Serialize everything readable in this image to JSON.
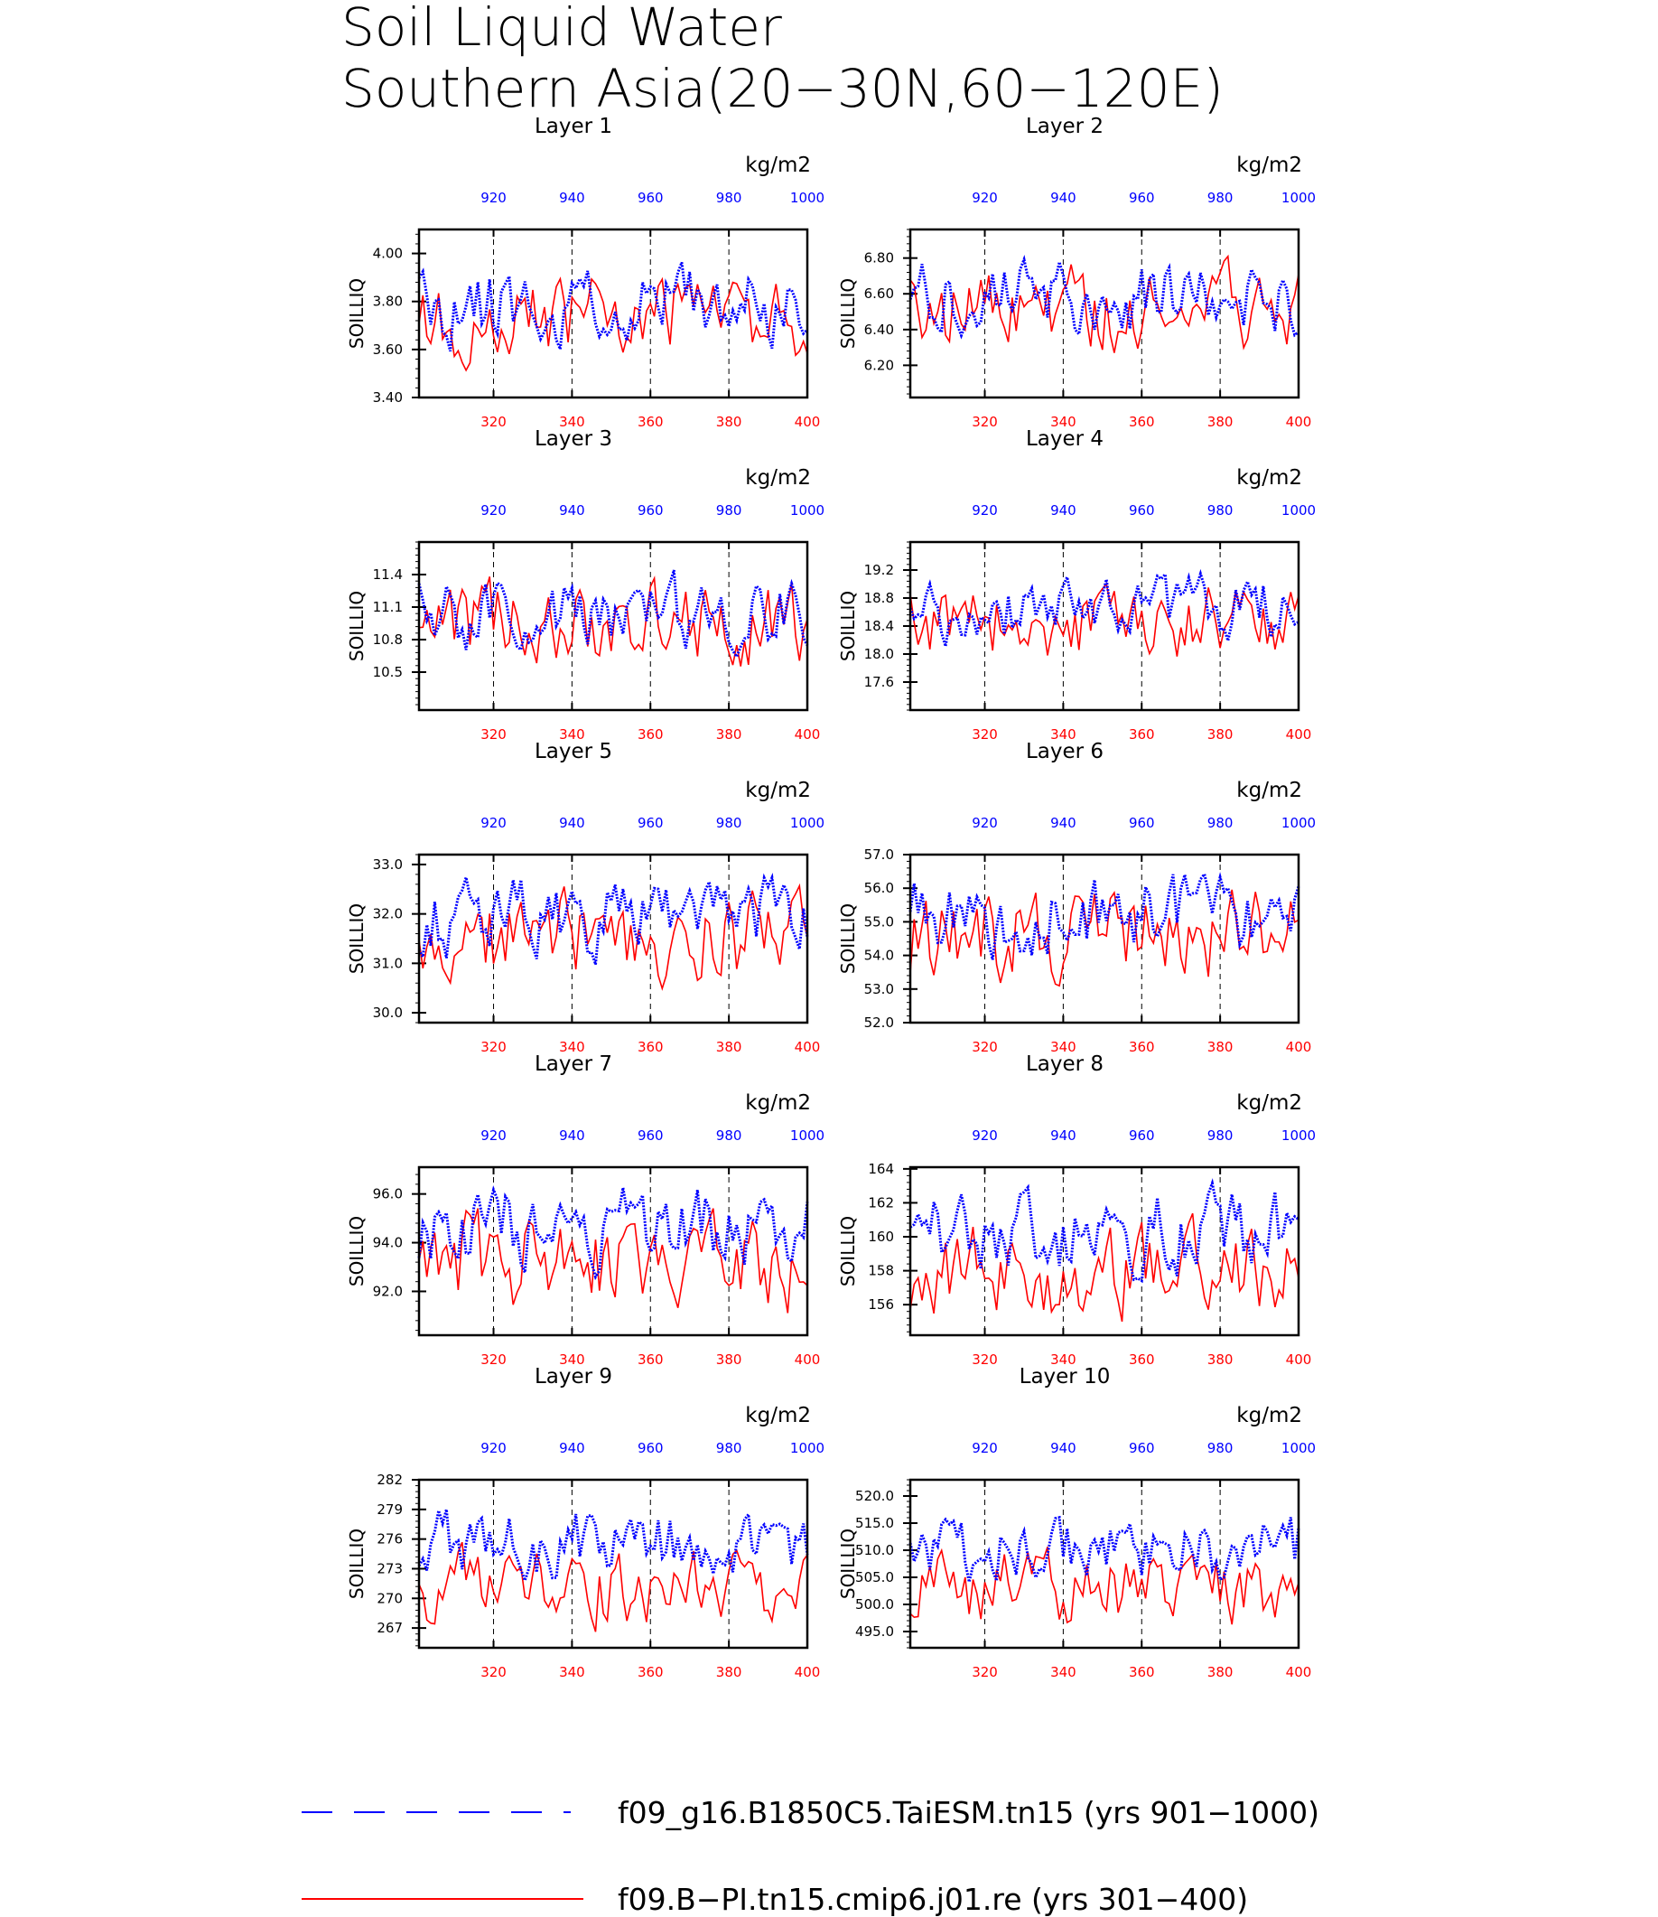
{
  "title_line1": "Soil Liquid Water",
  "title_line2": "Southern Asia(20−30N,60−120E)",
  "colors": {
    "blue_series": "#0000ff",
    "red_series": "#ff0000",
    "axis": "#000000"
  },
  "legend": [
    {
      "label": "f09_g16.B1850C5.TaiESM.tn15 (yrs 901−1000)",
      "color": "#0000ff",
      "style": "dashed"
    },
    {
      "label": "f09.B−PI.tn15.cmip6.j01.re (yrs 301−400)",
      "color": "#ff0000",
      "style": "solid"
    }
  ],
  "chart_data": [
    {
      "type": "line",
      "title": "Layer 1",
      "ylabel": "SOILLIQ",
      "units": "kg/m2",
      "yticks": [
        "3.40",
        "3.60",
        "3.80",
        "4.00"
      ],
      "ylim": [
        3.4,
        4.1
      ],
      "mean_blue": 3.78,
      "mean_red": 3.74,
      "amp": 0.12,
      "x_bottom": {
        "ticks": [
          "320",
          "340",
          "360",
          "380",
          "400"
        ],
        "range": [
          301,
          400
        ],
        "color": "#ff0000"
      },
      "x_top": {
        "ticks": [
          "920",
          "940",
          "960",
          "980",
          "1000"
        ],
        "range": [
          901,
          1000
        ],
        "color": "#0000ff"
      },
      "series": [
        {
          "name": "f09_g16.B1850C5.TaiESM.tn15",
          "color": "#0000ff",
          "style": "dotted",
          "seed": 11
        },
        {
          "name": "f09.B−PI.tn15.cmip6.j01.re",
          "color": "#ff0000",
          "style": "solid",
          "seed": 12
        }
      ]
    },
    {
      "type": "line",
      "title": "Layer 2",
      "ylabel": "SOILLIQ",
      "units": "kg/m2",
      "yticks": [
        "6.20",
        "6.40",
        "6.60",
        "6.80"
      ],
      "ylim": [
        6.02,
        6.96
      ],
      "mean_blue": 6.58,
      "mean_red": 6.52,
      "amp": 0.15,
      "x_bottom": {
        "ticks": [
          "320",
          "340",
          "360",
          "380",
          "400"
        ],
        "range": [
          301,
          400
        ],
        "color": "#ff0000"
      },
      "x_top": {
        "ticks": [
          "920",
          "940",
          "960",
          "980",
          "1000"
        ],
        "range": [
          901,
          1000
        ],
        "color": "#0000ff"
      },
      "series": [
        {
          "name": "f09_g16.B1850C5.TaiESM.tn15",
          "color": "#0000ff",
          "style": "dotted",
          "seed": 21
        },
        {
          "name": "f09.B−PI.tn15.cmip6.j01.re",
          "color": "#ff0000",
          "style": "solid",
          "seed": 22
        }
      ]
    },
    {
      "type": "line",
      "title": "Layer 3",
      "ylabel": "SOILLIQ",
      "units": "kg/m2",
      "yticks": [
        "10.5",
        "10.8",
        "11.1",
        "11.4"
      ],
      "ylim": [
        10.15,
        11.7
      ],
      "mean_blue": 11.05,
      "mean_red": 10.95,
      "amp": 0.25,
      "x_bottom": {
        "ticks": [
          "320",
          "340",
          "360",
          "380",
          "400"
        ],
        "range": [
          301,
          400
        ],
        "color": "#ff0000"
      },
      "x_top": {
        "ticks": [
          "920",
          "940",
          "960",
          "980",
          "1000"
        ],
        "range": [
          901,
          1000
        ],
        "color": "#0000ff"
      },
      "series": [
        {
          "name": "f09_g16.B1850C5.TaiESM.tn15",
          "color": "#0000ff",
          "style": "dotted",
          "seed": 31
        },
        {
          "name": "f09.B−PI.tn15.cmip6.j01.re",
          "color": "#ff0000",
          "style": "solid",
          "seed": 32
        }
      ]
    },
    {
      "type": "line",
      "title": "Layer 4",
      "ylabel": "SOILLIQ",
      "units": "kg/m2",
      "yticks": [
        "17.6",
        "18.0",
        "18.4",
        "18.8",
        "19.2"
      ],
      "ylim": [
        17.2,
        19.6
      ],
      "mean_blue": 18.65,
      "mean_red": 18.45,
      "amp": 0.35,
      "x_bottom": {
        "ticks": [
          "320",
          "340",
          "360",
          "380",
          "400"
        ],
        "range": [
          301,
          400
        ],
        "color": "#ff0000"
      },
      "x_top": {
        "ticks": [
          "920",
          "940",
          "960",
          "980",
          "1000"
        ],
        "range": [
          901,
          1000
        ],
        "color": "#0000ff"
      },
      "series": [
        {
          "name": "f09_g16.B1850C5.TaiESM.tn15",
          "color": "#0000ff",
          "style": "dotted",
          "seed": 41
        },
        {
          "name": "f09.B−PI.tn15.cmip6.j01.re",
          "color": "#ff0000",
          "style": "solid",
          "seed": 42
        }
      ]
    },
    {
      "type": "line",
      "title": "Layer 5",
      "ylabel": "SOILLIQ",
      "units": "kg/m2",
      "yticks": [
        "30.0",
        "31.0",
        "32.0",
        "33.0"
      ],
      "ylim": [
        29.8,
        33.2
      ],
      "mean_blue": 31.9,
      "mean_red": 31.5,
      "amp": 0.6,
      "x_bottom": {
        "ticks": [
          "320",
          "340",
          "360",
          "380",
          "400"
        ],
        "range": [
          301,
          400
        ],
        "color": "#ff0000"
      },
      "x_top": {
        "ticks": [
          "920",
          "940",
          "960",
          "980",
          "1000"
        ],
        "range": [
          901,
          1000
        ],
        "color": "#0000ff"
      },
      "series": [
        {
          "name": "f09_g16.B1850C5.TaiESM.tn15",
          "color": "#0000ff",
          "style": "dotted",
          "seed": 51
        },
        {
          "name": "f09.B−PI.tn15.cmip6.j01.re",
          "color": "#ff0000",
          "style": "solid",
          "seed": 52
        }
      ]
    },
    {
      "type": "line",
      "title": "Layer 6",
      "ylabel": "SOILLIQ",
      "units": "kg/m2",
      "yticks": [
        "52.0",
        "53.0",
        "54.0",
        "55.0",
        "56.0",
        "57.0"
      ],
      "ylim": [
        52.0,
        57.0
      ],
      "mean_blue": 55.2,
      "mean_red": 54.6,
      "amp": 0.9,
      "x_bottom": {
        "ticks": [
          "320",
          "340",
          "360",
          "380",
          "400"
        ],
        "range": [
          301,
          400
        ],
        "color": "#ff0000"
      },
      "x_top": {
        "ticks": [
          "920",
          "940",
          "960",
          "980",
          "1000"
        ],
        "range": [
          901,
          1000
        ],
        "color": "#0000ff"
      },
      "series": [
        {
          "name": "f09_g16.B1850C5.TaiESM.tn15",
          "color": "#0000ff",
          "style": "dotted",
          "seed": 61
        },
        {
          "name": "f09.B−PI.tn15.cmip6.j01.re",
          "color": "#ff0000",
          "style": "solid",
          "seed": 62
        }
      ]
    },
    {
      "type": "line",
      "title": "Layer 7",
      "ylabel": "SOILLIQ",
      "units": "kg/m2",
      "yticks": [
        "92.0",
        "94.0",
        "96.0"
      ],
      "ylim": [
        90.2,
        97.1
      ],
      "mean_blue": 94.6,
      "mean_red": 93.2,
      "amp": 1.3,
      "x_bottom": {
        "ticks": [
          "320",
          "340",
          "360",
          "380",
          "400"
        ],
        "range": [
          301,
          400
        ],
        "color": "#ff0000"
      },
      "x_top": {
        "ticks": [
          "920",
          "940",
          "960",
          "980",
          "1000"
        ],
        "range": [
          901,
          1000
        ],
        "color": "#0000ff"
      },
      "series": [
        {
          "name": "f09_g16.B1850C5.TaiESM.tn15",
          "color": "#0000ff",
          "style": "dotted",
          "seed": 71
        },
        {
          "name": "f09.B−PI.tn15.cmip6.j01.re",
          "color": "#ff0000",
          "style": "solid",
          "seed": 72
        }
      ]
    },
    {
      "type": "line",
      "title": "Layer 8",
      "ylabel": "SOILLIQ",
      "units": "kg/m2",
      "yticks": [
        "156",
        "158",
        "160",
        "162",
        "164"
      ],
      "ylim": [
        154.2,
        164.1
      ],
      "mean_blue": 160.2,
      "mean_red": 157.8,
      "amp": 1.8,
      "x_bottom": {
        "ticks": [
          "320",
          "340",
          "360",
          "380",
          "400"
        ],
        "range": [
          301,
          400
        ],
        "color": "#ff0000"
      },
      "x_top": {
        "ticks": [
          "920",
          "940",
          "960",
          "980",
          "1000"
        ],
        "range": [
          901,
          1000
        ],
        "color": "#0000ff"
      },
      "series": [
        {
          "name": "f09_g16.B1850C5.TaiESM.tn15",
          "color": "#0000ff",
          "style": "dotted",
          "seed": 81
        },
        {
          "name": "f09.B−PI.tn15.cmip6.j01.re",
          "color": "#ff0000",
          "style": "solid",
          "seed": 82
        }
      ]
    },
    {
      "type": "line",
      "title": "Layer 9",
      "ylabel": "SOILLIQ",
      "units": "kg/m2",
      "yticks": [
        "267",
        "270",
        "273",
        "276",
        "279",
        "282"
      ],
      "ylim": [
        265.0,
        282.0
      ],
      "mean_blue": 275.5,
      "mean_red": 271.0,
      "amp": 2.6,
      "x_bottom": {
        "ticks": [
          "320",
          "340",
          "360",
          "380",
          "400"
        ],
        "range": [
          301,
          400
        ],
        "color": "#ff0000"
      },
      "x_top": {
        "ticks": [
          "920",
          "940",
          "960",
          "980",
          "1000"
        ],
        "range": [
          901,
          1000
        ],
        "color": "#0000ff"
      },
      "series": [
        {
          "name": "f09_g16.B1850C5.TaiESM.tn15",
          "color": "#0000ff",
          "style": "dotted",
          "seed": 91
        },
        {
          "name": "f09.B−PI.tn15.cmip6.j01.re",
          "color": "#ff0000",
          "style": "solid",
          "seed": 92
        }
      ]
    },
    {
      "type": "line",
      "title": "Layer 10",
      "ylabel": "SOILLIQ",
      "units": "kg/m2",
      "yticks": [
        "495.0",
        "500.0",
        "505.0",
        "510.0",
        "515.0",
        "520.0"
      ],
      "ylim": [
        492.0,
        523.0
      ],
      "mean_blue": 510.0,
      "mean_red": 503.0,
      "amp": 4.5,
      "x_bottom": {
        "ticks": [
          "320",
          "340",
          "360",
          "380",
          "400"
        ],
        "range": [
          301,
          400
        ],
        "color": "#ff0000"
      },
      "x_top": {
        "ticks": [
          "920",
          "940",
          "960",
          "980",
          "1000"
        ],
        "range": [
          901,
          1000
        ],
        "color": "#0000ff"
      },
      "series": [
        {
          "name": "f09_g16.B1850C5.TaiESM.tn15",
          "color": "#0000ff",
          "style": "dotted",
          "seed": 101
        },
        {
          "name": "f09.B−PI.tn15.cmip6.j01.re",
          "color": "#ff0000",
          "style": "solid",
          "seed": 102
        }
      ]
    }
  ]
}
